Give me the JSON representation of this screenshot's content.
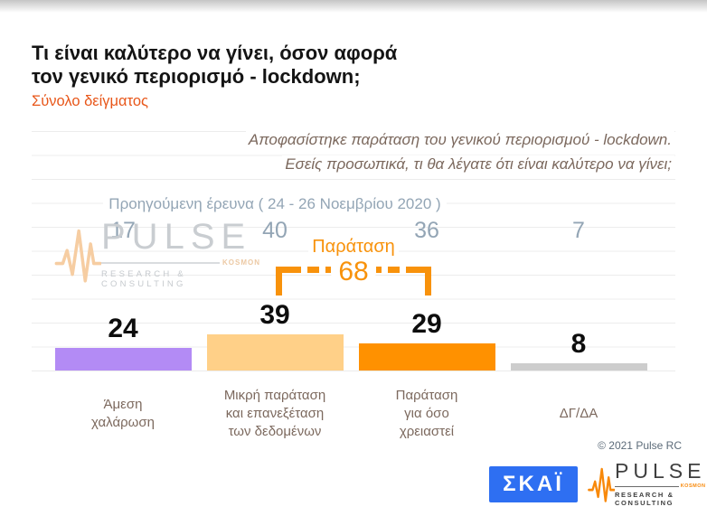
{
  "header": {
    "title_line1": "Τι είναι καλύτερο να γίνει, όσον αφορά",
    "title_line2": "τον γενικό περιορισμό - lockdown;",
    "subtitle": "Σύνολο δείγματος"
  },
  "question": {
    "line1": "Αποφασίστηκε παράταση του γενικού περιορισμού - lockdown.",
    "line2": "Εσείς προσωπικά, τι θα λέγατε ότι είναι καλύτερο να γίνει;"
  },
  "chart_data": {
    "type": "bar",
    "title": "Τι είναι καλύτερο να γίνει, όσον αφορά τον γενικό περιορισμό - lockdown;",
    "sample_label": "Σύνολο δείγματος",
    "categories": [
      "Άμεση\nχαλάρωση",
      "Μικρή παράταση\nκαι επανεξέταση\nτων δεδομένων",
      "Παράταση\nγια όσο\nχρειαστεί",
      "ΔΓ/ΔΑ"
    ],
    "values": [
      24,
      39,
      29,
      8
    ],
    "previous_survey": {
      "label": "Προηγούμενη έρευνα ( 24 - 26  Νοεμβρίου  2020 )",
      "values": [
        17,
        40,
        36,
        7
      ]
    },
    "bracket_annotation": {
      "label": "Παράταση",
      "value": 68,
      "covers_category_indices": [
        1,
        2
      ]
    },
    "bar_colors": [
      "#b38bf5",
      "#ffd088",
      "#ff9100",
      "#cdcdcd"
    ],
    "grid": true,
    "legend": false,
    "ylim": [
      0,
      80
    ]
  },
  "watermark": {
    "brand": "PULSE",
    "tag": "KOSMON",
    "sub": "RESEARCH & CONSULTING"
  },
  "footer": {
    "copyright": "© 2021 Pulse RC",
    "skai": "ΣΚΑΪ",
    "pulse": {
      "brand": "PULSE",
      "tag": "KOSMON",
      "sub": "RESEARCH & CONSULTING"
    }
  },
  "colors": {
    "subtitle_orange": "#e8571a",
    "annotation_orange": "#f8920b",
    "previous_survey_gray_blue": "#93a5b5",
    "category_label_brown": "#7c695e",
    "skai_blue": "#2e6ff2"
  }
}
